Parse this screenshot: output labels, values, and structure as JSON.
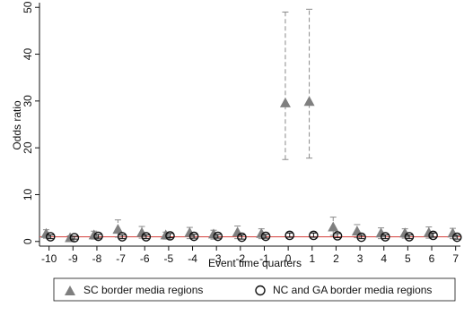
{
  "chart_data": {
    "type": "scatter",
    "title": "",
    "xlabel": "Event time quarters",
    "ylabel": "Odds ratio",
    "xlim": [
      -10.4,
      7.2
    ],
    "ylim": [
      -1,
      51
    ],
    "x_ticks": [
      -10,
      -9,
      -8,
      -7,
      -6,
      -5,
      -4,
      -3,
      -2,
      -1,
      0,
      1,
      2,
      3,
      4,
      5,
      6,
      7
    ],
    "y_ticks": [
      0,
      10,
      20,
      30,
      40,
      50
    ],
    "reference_line": 1,
    "grid": false,
    "legend_position": "bottom",
    "series": [
      {
        "name": "SC border media regions",
        "marker": "triangle",
        "color": "#7f7f7f",
        "x_offset": -0.12,
        "points": [
          {
            "x": -10,
            "y": 1.6,
            "lo": 0.7,
            "hi": 2.5
          },
          {
            "x": -9,
            "y": 0.7,
            "lo": 0.3,
            "hi": 1.2
          },
          {
            "x": -8,
            "y": 1.3,
            "lo": 0.5,
            "hi": 2.2
          },
          {
            "x": -7,
            "y": 2.5,
            "lo": 0.9,
            "hi": 4.6
          },
          {
            "x": -6,
            "y": 1.8,
            "lo": 0.7,
            "hi": 3.2
          },
          {
            "x": -5,
            "y": 1.3,
            "lo": 0.5,
            "hi": 2.0
          },
          {
            "x": -4,
            "y": 1.8,
            "lo": 0.6,
            "hi": 3.0
          },
          {
            "x": -3,
            "y": 1.5,
            "lo": 0.5,
            "hi": 2.4
          },
          {
            "x": -2,
            "y": 1.9,
            "lo": 0.6,
            "hi": 3.3
          },
          {
            "x": -1,
            "y": 1.6,
            "lo": 0.6,
            "hi": 2.7
          },
          {
            "x": 0,
            "y": 29.5,
            "lo": 17.5,
            "hi": 49.0
          },
          {
            "x": 1,
            "y": 29.8,
            "lo": 17.8,
            "hi": 49.6
          },
          {
            "x": 2,
            "y": 3.0,
            "lo": 1.3,
            "hi": 5.2
          },
          {
            "x": 3,
            "y": 2.1,
            "lo": 0.8,
            "hi": 3.6
          },
          {
            "x": 4,
            "y": 1.7,
            "lo": 0.6,
            "hi": 2.9
          },
          {
            "x": 5,
            "y": 1.7,
            "lo": 0.7,
            "hi": 2.7
          },
          {
            "x": 6,
            "y": 1.8,
            "lo": 0.7,
            "hi": 3.1
          },
          {
            "x": 7,
            "y": 1.7,
            "lo": 0.6,
            "hi": 2.8
          }
        ]
      },
      {
        "name": "NC and GA border media regions",
        "marker": "hollow-circle",
        "color": "#111111",
        "x_offset": 0.06,
        "points": [
          {
            "x": -10,
            "y": 1.0,
            "lo": 0.6,
            "hi": 1.4
          },
          {
            "x": -9,
            "y": 0.8,
            "lo": 0.5,
            "hi": 1.1
          },
          {
            "x": -8,
            "y": 1.1,
            "lo": 0.7,
            "hi": 1.5
          },
          {
            "x": -7,
            "y": 1.0,
            "lo": 0.6,
            "hi": 1.4
          },
          {
            "x": -6,
            "y": 1.0,
            "lo": 0.6,
            "hi": 1.4
          },
          {
            "x": -5,
            "y": 1.2,
            "lo": 0.8,
            "hi": 1.7
          },
          {
            "x": -4,
            "y": 1.1,
            "lo": 0.7,
            "hi": 1.5
          },
          {
            "x": -3,
            "y": 1.1,
            "lo": 0.7,
            "hi": 1.5
          },
          {
            "x": -2,
            "y": 0.9,
            "lo": 0.5,
            "hi": 1.4
          },
          {
            "x": -1,
            "y": 1.1,
            "lo": 0.7,
            "hi": 1.5
          },
          {
            "x": 0,
            "y": 1.3,
            "lo": 0.9,
            "hi": 1.8
          },
          {
            "x": 1,
            "y": 1.3,
            "lo": 0.9,
            "hi": 1.8
          },
          {
            "x": 2,
            "y": 1.2,
            "lo": 0.8,
            "hi": 1.7
          },
          {
            "x": 3,
            "y": 0.9,
            "lo": 0.6,
            "hi": 1.3
          },
          {
            "x": 4,
            "y": 1.0,
            "lo": 0.6,
            "hi": 1.4
          },
          {
            "x": 5,
            "y": 1.0,
            "lo": 0.6,
            "hi": 1.4
          },
          {
            "x": 6,
            "y": 1.3,
            "lo": 0.9,
            "hi": 1.8
          },
          {
            "x": 7,
            "y": 0.9,
            "lo": 0.5,
            "hi": 1.3
          }
        ]
      }
    ]
  }
}
